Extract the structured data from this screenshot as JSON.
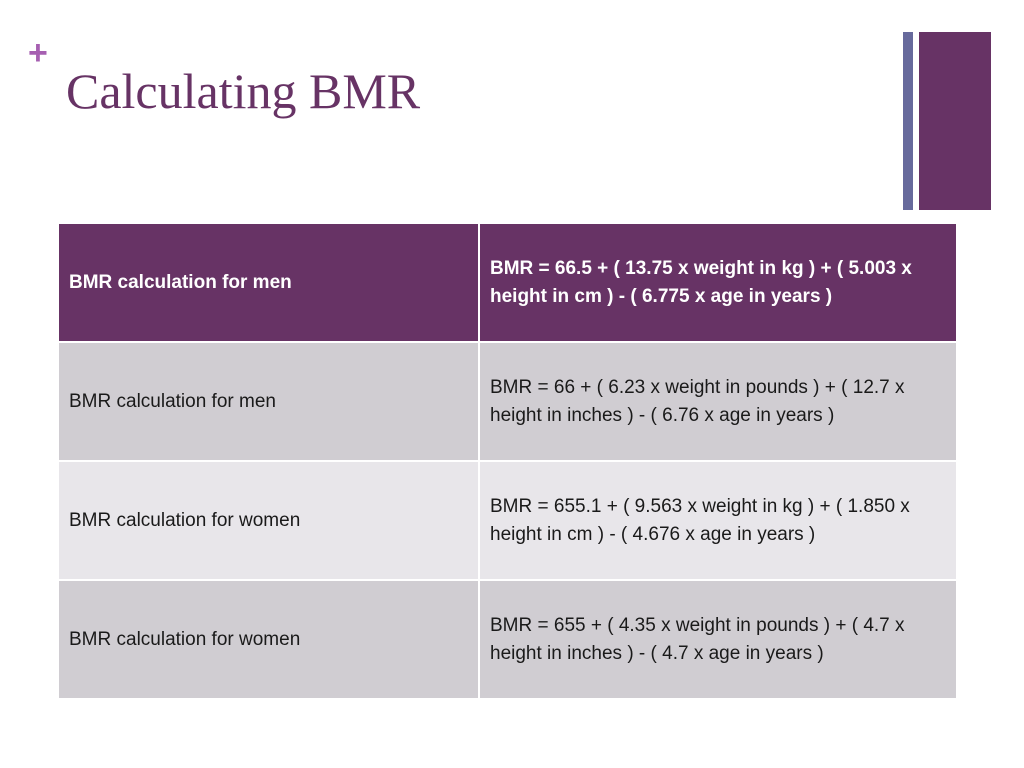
{
  "slide": {
    "bullet": "+",
    "title": "Calculating BMR"
  },
  "colors": {
    "accent_purple": "#673365",
    "deco_thin": "#676a9c",
    "plus_color": "#a65fb1",
    "header_bg": "#673365",
    "row_bg_dark": "#d0cdd2",
    "row_bg_light": "#e8e6ea"
  },
  "table": {
    "rows": [
      {
        "label": "BMR calculation for men",
        "formula": "BMR = 66.5 + ( 13.75 x weight in kg ) + ( 5.003 x height in cm ) - ( 6.775 x age in years )"
      },
      {
        "label": "BMR calculation for men",
        "formula": "BMR = 66 + ( 6.23 x weight in pounds ) + ( 12.7 x height in inches ) - ( 6.76 x age in years )"
      },
      {
        "label": "BMR calculation for women",
        "formula": "BMR = 655.1 + ( 9.563 x weight in kg ) + ( 1.850 x height in cm ) - ( 4.676 x age in years )"
      },
      {
        "label": "BMR calculation for women",
        "formula": "BMR = 655 + ( 4.35 x weight in pounds ) + ( 4.7 x height in inches ) - ( 4.7 x age in years )"
      }
    ]
  }
}
